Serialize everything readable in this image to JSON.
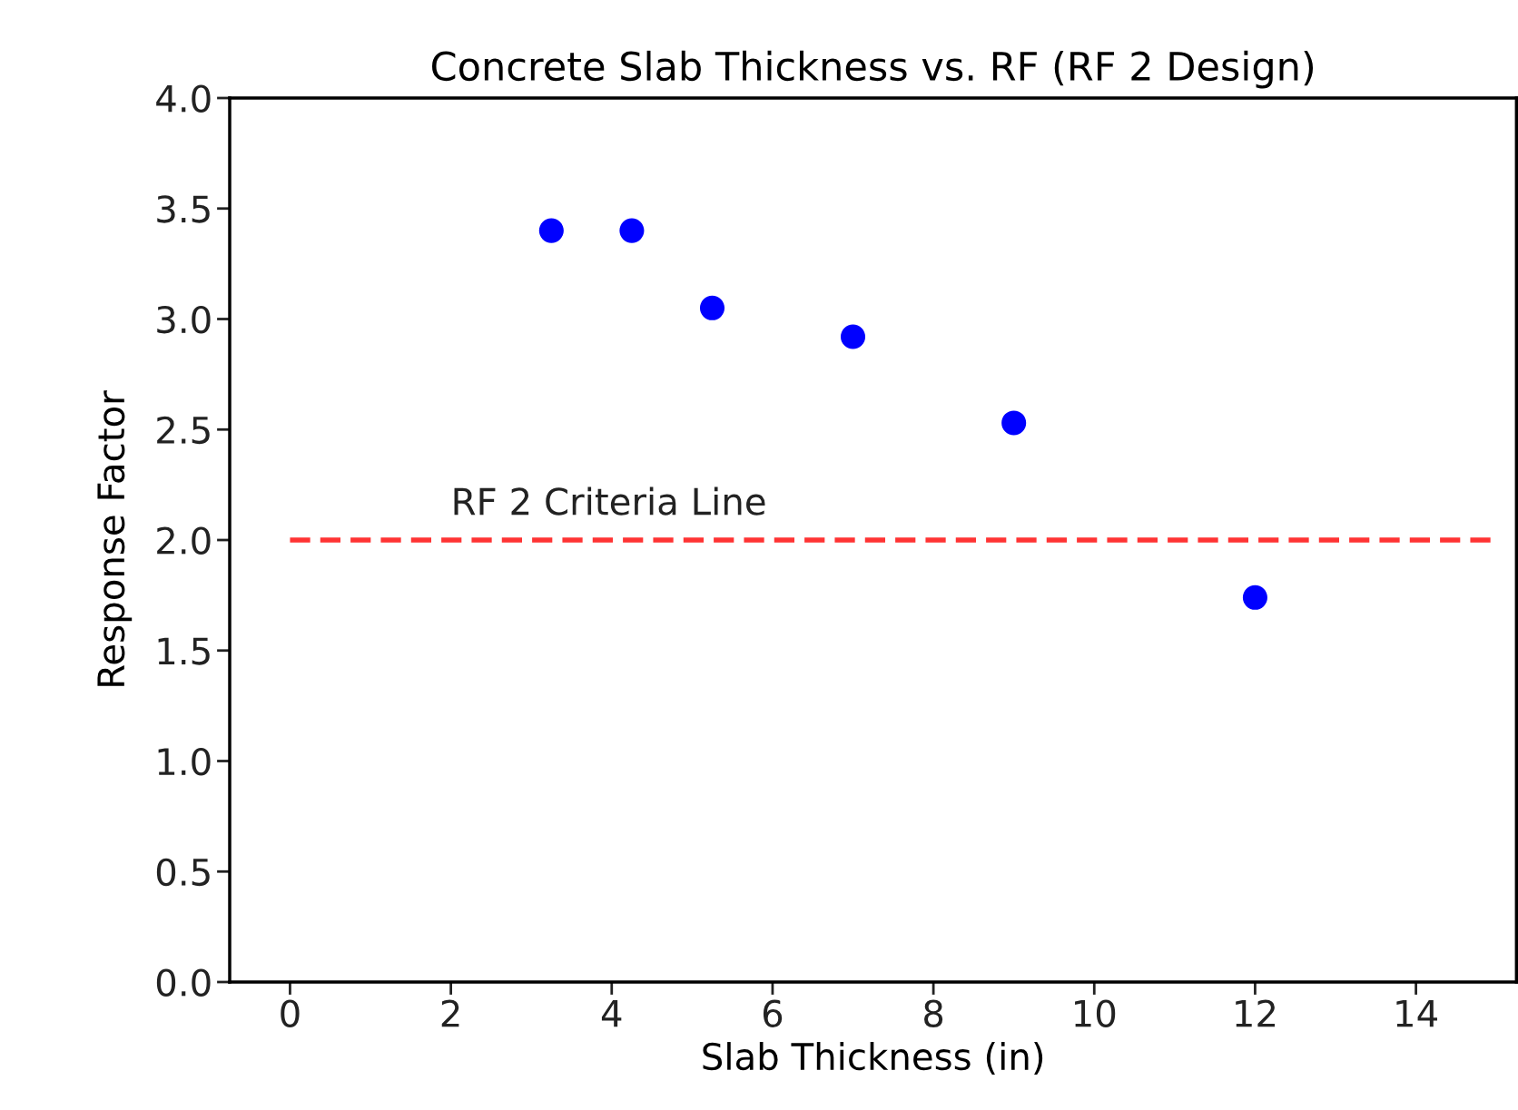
{
  "chart_data": {
    "type": "scatter",
    "title": "Concrete Slab Thickness vs. RF (RF 2 Design)",
    "xlabel": "Slab Thickness (in)",
    "ylabel": "Response Factor",
    "series": [
      {
        "color": "#0000ff",
        "x": [
          3.25,
          4.25,
          5.25,
          7,
          9,
          12
        ],
        "values": [
          3.4,
          3.4,
          3.05,
          2.92,
          2.53,
          1.74
        ]
      },
      {
        "type": "line",
        "name": "RF 2 Criteria Line",
        "color": "#ff3333",
        "line_style": "dashed",
        "marker": "none",
        "x": [
          0,
          15
        ],
        "values": [
          2,
          2
        ]
      }
    ],
    "marker": "circle",
    "xlim": [
      -0.75,
      15.25
    ],
    "ylim": [
      0,
      4
    ],
    "xticks": [
      0,
      2,
      4,
      6,
      8,
      10,
      12,
      14
    ],
    "yticks": [
      {
        "value": 0,
        "label": "0.0"
      },
      {
        "value": 0.5,
        "label": "0.5"
      },
      {
        "value": 1,
        "label": "1.0"
      },
      {
        "value": 1.5,
        "label": "1.5"
      },
      {
        "value": 2,
        "label": "2.0"
      },
      {
        "value": 2.5,
        "label": "2.5"
      },
      {
        "value": 3,
        "label": "3.0"
      },
      {
        "value": 3.5,
        "label": "3.5"
      },
      {
        "value": 4,
        "label": "4.0"
      }
    ],
    "grid": false,
    "legend": false
  }
}
